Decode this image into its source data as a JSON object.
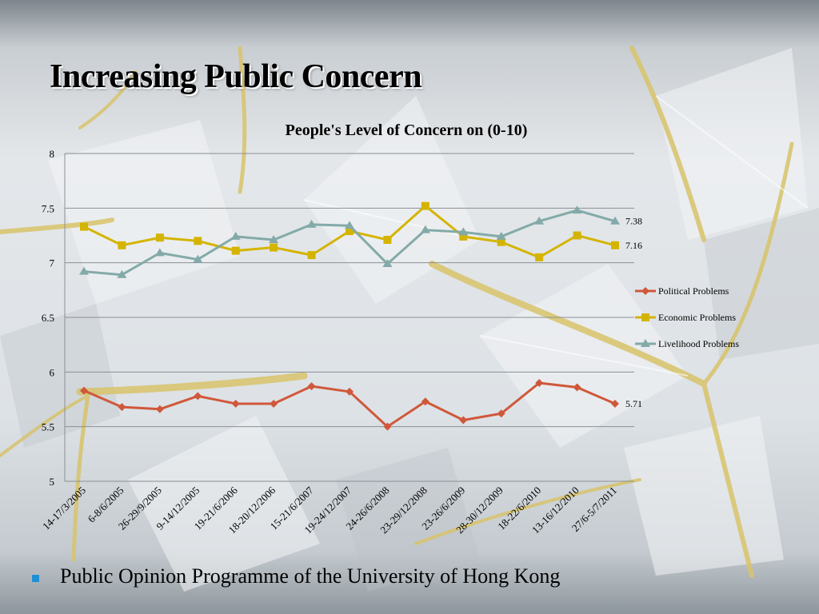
{
  "slide": {
    "title": "Increasing Public Concern",
    "footer_text": "Public Opinion Programme of the University of Hong Kong"
  },
  "colors": {
    "political": "#d0583a",
    "economic": "#d4b400",
    "livelihood": "#83aaa8",
    "bullet": "#1e8fd6"
  },
  "chart_data": {
    "type": "line",
    "title": "People's Level of Concern on (0-10)",
    "xlabel": "",
    "ylabel": "",
    "ylim": [
      5,
      8
    ],
    "yticks": [
      5,
      5.5,
      6,
      6.5,
      7,
      7.5,
      8
    ],
    "ytick_labels": [
      "5",
      "5.5",
      "6",
      "6.5",
      "7",
      "7.5",
      "8"
    ],
    "grid": true,
    "legend_position": "right",
    "categories": [
      "14-17/3/2005",
      "6-8/6/2005",
      "26-29/9/2005",
      "9-14/12/2005",
      "19-21/6/2006",
      "18-20/12/2006",
      "15-21/6/2007",
      "19-24/12/2007",
      "24-26/6/2008",
      "23-29/12/2008",
      "23-26/6/2009",
      "28-30/12/2009",
      "18-22/6/2010",
      "13-16/12/2010",
      "27/6-5/7/2011"
    ],
    "series": [
      {
        "name": "Political Problems",
        "marker": "diamond",
        "values": [
          5.83,
          5.68,
          5.66,
          5.78,
          5.71,
          5.71,
          5.87,
          5.82,
          5.5,
          5.73,
          5.56,
          5.62,
          5.9,
          5.86,
          5.71
        ],
        "end_label": "5.71"
      },
      {
        "name": "Economic Problems",
        "marker": "square",
        "values": [
          7.33,
          7.16,
          7.23,
          7.2,
          7.11,
          7.14,
          7.07,
          7.29,
          7.21,
          7.52,
          7.24,
          7.19,
          7.05,
          7.25,
          7.16
        ],
        "end_label": "7.16"
      },
      {
        "name": "Livelihood Problems",
        "marker": "triangle",
        "values": [
          6.92,
          6.89,
          7.09,
          7.03,
          7.24,
          7.21,
          7.35,
          7.34,
          6.99,
          7.3,
          7.28,
          7.24,
          7.38,
          7.48,
          7.38
        ],
        "end_label": "7.38"
      }
    ]
  }
}
